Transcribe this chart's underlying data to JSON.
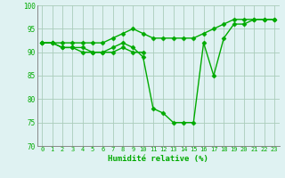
{
  "x": [
    0,
    1,
    2,
    3,
    4,
    5,
    6,
    7,
    8,
    9,
    10,
    11,
    12,
    13,
    14,
    15,
    16,
    17,
    18,
    19,
    20,
    21,
    22,
    23
  ],
  "y_main": [
    92,
    92,
    91,
    91,
    91,
    90,
    90,
    91,
    92,
    91,
    89,
    78,
    77,
    75,
    75,
    75,
    92,
    85,
    93,
    96,
    96,
    97,
    97,
    97
  ],
  "y_upper": [
    92,
    92,
    92,
    92,
    92,
    92,
    92,
    93,
    94,
    95,
    94,
    93,
    93,
    93,
    93,
    93,
    94,
    95,
    96,
    97,
    97,
    97,
    97,
    97
  ],
  "y_lower": [
    92,
    92,
    91,
    91,
    90,
    90,
    90,
    90,
    91,
    90,
    90,
    null,
    null,
    null,
    null,
    null,
    null,
    null,
    null,
    null,
    null,
    null,
    null,
    null
  ],
  "xlim": [
    -0.5,
    23.5
  ],
  "ylim": [
    70,
    100
  ],
  "yticks": [
    70,
    75,
    80,
    85,
    90,
    95,
    100
  ],
  "xticks": [
    0,
    1,
    2,
    3,
    4,
    5,
    6,
    7,
    8,
    9,
    10,
    11,
    12,
    13,
    14,
    15,
    16,
    17,
    18,
    19,
    20,
    21,
    22,
    23
  ],
  "xlabel": "Humidité relative (%)",
  "line_color": "#00aa00",
  "bg_color": "#dff2f2",
  "grid_color": "#aaccbb",
  "marker": "D",
  "markersize": 2.5,
  "linewidth": 1.0
}
